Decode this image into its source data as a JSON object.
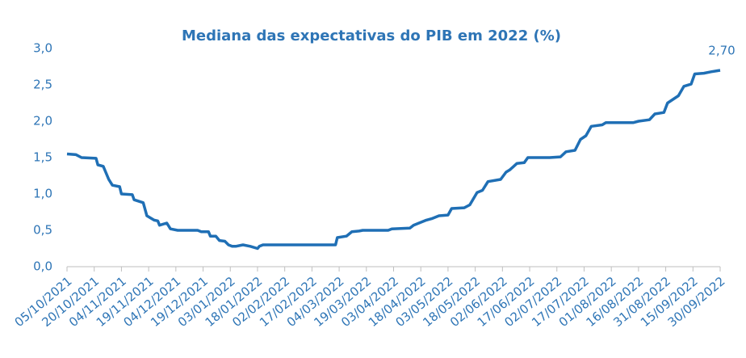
{
  "chart_data": {
    "type": "line",
    "title": "Mediana das expectativas do PIB em 2022 (%)",
    "x": [
      "05/10/2021",
      "10/10/2021",
      "13/10/2021",
      "21/10/2021",
      "22/10/2021",
      "25/10/2021",
      "28/10/2021",
      "30/10/2021",
      "03/11/2021",
      "04/11/2021",
      "10/11/2021",
      "11/11/2021",
      "16/11/2021",
      "18/11/2021",
      "22/11/2021",
      "24/11/2021",
      "25/11/2021",
      "29/11/2021",
      "01/12/2021",
      "05/12/2021",
      "16/12/2021",
      "18/12/2021",
      "22/12/2021",
      "23/12/2021",
      "26/12/2021",
      "28/12/2021",
      "31/12/2021",
      "02/01/2022",
      "04/01/2022",
      "06/01/2022",
      "10/01/2022",
      "14/01/2022",
      "18/01/2022",
      "19/01/2022",
      "20/01/2022",
      "21/01/2022",
      "02/03/2022",
      "03/03/2022",
      "08/03/2022",
      "11/03/2022",
      "15/03/2022",
      "17/03/2022",
      "31/03/2022",
      "02/04/2022",
      "12/04/2022",
      "14/04/2022",
      "17/04/2022",
      "21/04/2022",
      "24/04/2022",
      "28/04/2022",
      "03/05/2022",
      "05/05/2022",
      "12/05/2022",
      "15/05/2022",
      "19/05/2022",
      "22/05/2022",
      "25/05/2022",
      "01/06/2022",
      "04/06/2022",
      "06/06/2022",
      "10/06/2022",
      "14/06/2022",
      "16/06/2022",
      "28/06/2022",
      "04/07/2022",
      "07/07/2022",
      "12/07/2022",
      "15/07/2022",
      "18/07/2022",
      "21/07/2022",
      "27/07/2022",
      "29/07/2022",
      "13/08/2022",
      "16/08/2022",
      "22/08/2022",
      "25/08/2022",
      "30/08/2022",
      "01/09/2022",
      "07/09/2022",
      "10/09/2022",
      "14/09/2022",
      "16/09/2022",
      "21/09/2022",
      "25/09/2022",
      "30/09/2022"
    ],
    "series": [
      {
        "name": "Mediana",
        "color": "#1f6fb5",
        "values": [
          1.55,
          1.54,
          1.5,
          1.49,
          1.4,
          1.38,
          1.2,
          1.12,
          1.1,
          1.0,
          0.99,
          0.92,
          0.88,
          0.7,
          0.64,
          0.63,
          0.57,
          0.6,
          0.52,
          0.5,
          0.5,
          0.48,
          0.48,
          0.42,
          0.42,
          0.36,
          0.35,
          0.3,
          0.28,
          0.28,
          0.3,
          0.28,
          0.25,
          0.28,
          0.29,
          0.3,
          0.3,
          0.4,
          0.42,
          0.48,
          0.49,
          0.5,
          0.5,
          0.52,
          0.53,
          0.57,
          0.6,
          0.64,
          0.66,
          0.7,
          0.71,
          0.8,
          0.81,
          0.85,
          1.02,
          1.05,
          1.17,
          1.2,
          1.3,
          1.33,
          1.42,
          1.43,
          1.5,
          1.5,
          1.51,
          1.58,
          1.6,
          1.75,
          1.8,
          1.93,
          1.95,
          1.98,
          1.98,
          2.0,
          2.02,
          2.1,
          2.12,
          2.25,
          2.35,
          2.48,
          2.51,
          2.65,
          2.66,
          2.68,
          2.7
        ]
      }
    ],
    "annotations": [
      {
        "label": "2,70",
        "x": "30/09/2022",
        "y": 2.7
      }
    ],
    "xlim": [
      "05/10/2021",
      "30/09/2022"
    ],
    "xticks": [
      "05/10/2021",
      "20/10/2021",
      "04/11/2021",
      "19/11/2021",
      "04/12/2021",
      "19/12/2021",
      "03/01/2022",
      "18/01/2022",
      "02/02/2022",
      "17/02/2022",
      "04/03/2022",
      "19/03/2022",
      "03/04/2022",
      "18/04/2022",
      "03/05/2022",
      "18/05/2022",
      "02/06/2022",
      "17/06/2022",
      "02/07/2022",
      "17/07/2022",
      "01/08/2022",
      "16/08/2022",
      "31/08/2022",
      "15/09/2022",
      "30/09/2022"
    ],
    "ylim": [
      0,
      3
    ],
    "yticks": [
      {
        "value": 0,
        "label": "0,0"
      },
      {
        "value": 0.5,
        "label": "0,5"
      },
      {
        "value": 1,
        "label": "1,0"
      },
      {
        "value": 1.5,
        "label": "1,5"
      },
      {
        "value": 2,
        "label": "2,0"
      },
      {
        "value": 2.5,
        "label": "2,5"
      },
      {
        "value": 3,
        "label": "3,0"
      }
    ],
    "grid": false
  }
}
